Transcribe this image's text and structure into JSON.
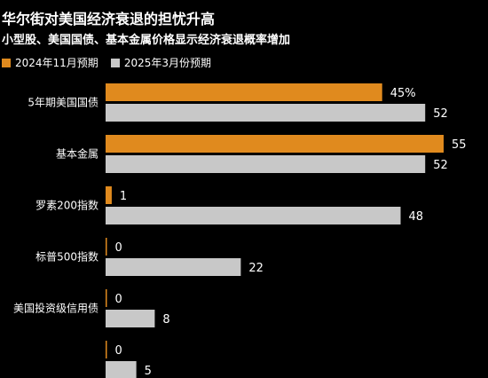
{
  "chart_data": {
    "type": "bar",
    "orientation": "horizontal",
    "title": "华尔街对美国经济衰退的担忧升高",
    "subtitle": "小型股、美国国债、基本金属价格显示经济衰退概率增加",
    "categories": [
      "5年期美国国债",
      "基本金属",
      "罗素200指数",
      "标普500指数",
      "美国投资级信用债",
      ""
    ],
    "series": [
      {
        "name": "2024年11月预期",
        "color": "#E08A1E",
        "values": [
          45,
          55,
          1,
          0,
          0,
          0
        ]
      },
      {
        "name": "2025年3月份预期",
        "color": "#C8C8C8",
        "values": [
          52,
          52,
          48,
          22,
          8,
          5
        ]
      }
    ],
    "value_labels": [
      [
        "45%",
        "55",
        "1",
        "0",
        "0",
        "0"
      ],
      [
        "52",
        "52",
        "48",
        "22",
        "8",
        "5"
      ]
    ],
    "xlim": [
      0,
      55
    ],
    "grid": false,
    "legend_position": "top-left"
  }
}
